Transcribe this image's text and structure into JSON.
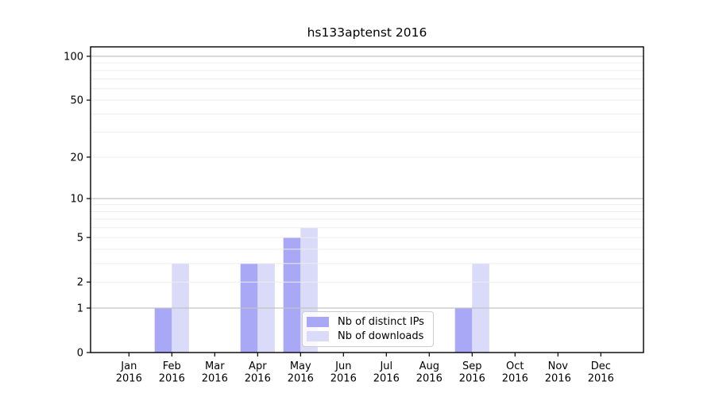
{
  "chart_data": {
    "type": "bar",
    "title": "hs133aptenst 2016",
    "x": {
      "months": [
        "Jan",
        "Feb",
        "Mar",
        "Apr",
        "May",
        "Jun",
        "Jul",
        "Aug",
        "Sep",
        "Oct",
        "Nov",
        "Dec"
      ],
      "year": "2016"
    },
    "series": [
      {
        "name": "Nb of distinct IPs",
        "color": "#a8a8f6",
        "values": [
          0,
          1,
          0,
          3,
          5,
          0,
          0,
          0,
          1,
          0,
          0,
          0
        ]
      },
      {
        "name": "Nb of downloads",
        "color": "#dadaf9",
        "values": [
          0,
          3,
          0,
          3,
          6,
          0,
          0,
          0,
          3,
          0,
          0,
          0
        ]
      }
    ],
    "y": {
      "scale": "log1p",
      "ticks": [
        0,
        1,
        2,
        5,
        10,
        20,
        50,
        100
      ],
      "ylim": [
        0,
        116
      ],
      "minor_gridlines": [
        2,
        3,
        4,
        5,
        6,
        7,
        8,
        9,
        20,
        30,
        40,
        50,
        60,
        70,
        80,
        90
      ],
      "major_gridlines": [
        1,
        10,
        100
      ],
      "grid_minor_color": "#ededed",
      "grid_major_color": "#c3c3c3",
      "axis_color": "#000000"
    },
    "legend": {
      "position": "inside-bottom-center",
      "border_color": "#cccccc"
    }
  }
}
